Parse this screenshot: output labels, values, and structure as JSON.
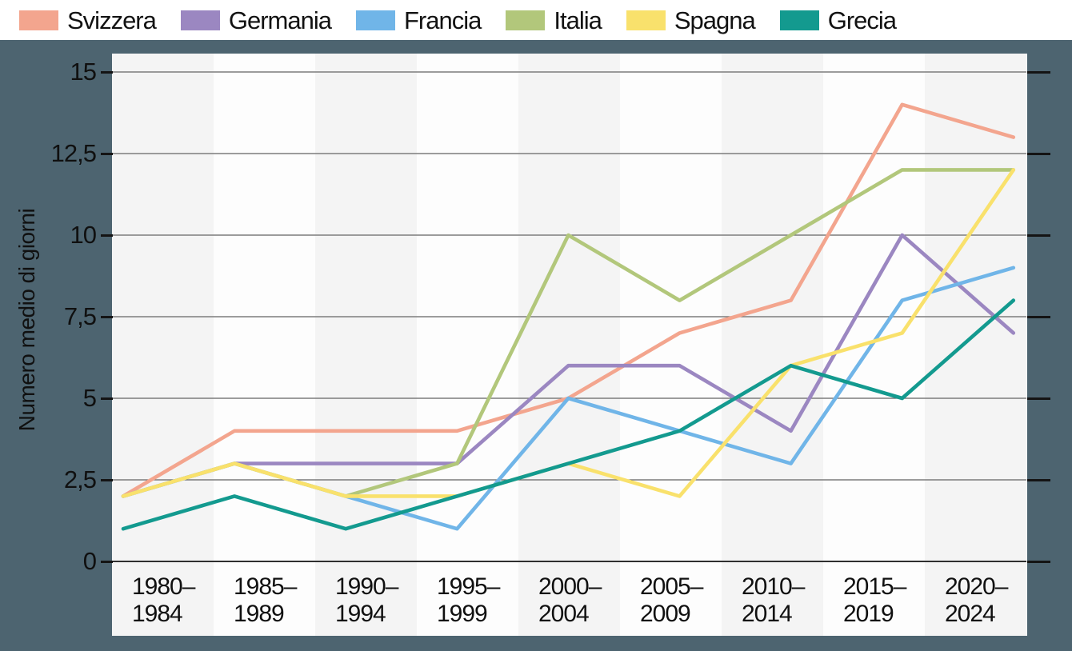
{
  "legend": {
    "items": [
      {
        "label": "Svizzera",
        "color": "#f3a58e"
      },
      {
        "label": "Germania",
        "color": "#9b87c1"
      },
      {
        "label": "Francia",
        "color": "#70b5e8"
      },
      {
        "label": "Italia",
        "color": "#b2c77b"
      },
      {
        "label": "Spagna",
        "color": "#f9e16c"
      },
      {
        "label": "Grecia",
        "color": "#139a8f"
      }
    ]
  },
  "chart_data": {
    "type": "line",
    "title": "",
    "ylabel": "Numero medio di giorni",
    "xlabel": "",
    "categories": [
      "1980–1984",
      "1985–1989",
      "1990–1994",
      "1995–1999",
      "2000–2004",
      "2005–2009",
      "2010–2014",
      "2015–2019",
      "2020–2024"
    ],
    "series": [
      {
        "name": "Svizzera",
        "color": "#f3a58e",
        "values": [
          2,
          4,
          4,
          4,
          5,
          7,
          8,
          14,
          13
        ]
      },
      {
        "name": "Germania",
        "color": "#9b87c1",
        "values": [
          2,
          3,
          3,
          3,
          6,
          6,
          4,
          10,
          7
        ]
      },
      {
        "name": "Francia",
        "color": "#70b5e8",
        "values": [
          2,
          3,
          2,
          1,
          5,
          4,
          3,
          8,
          9
        ]
      },
      {
        "name": "Italia",
        "color": "#b2c77b",
        "values": [
          2,
          3,
          2,
          3,
          10,
          8,
          10,
          12,
          12
        ]
      },
      {
        "name": "Spagna",
        "color": "#f9e16c",
        "values": [
          2,
          3,
          2,
          2,
          3,
          2,
          6,
          7,
          12
        ]
      },
      {
        "name": "Grecia",
        "color": "#139a8f",
        "values": [
          1,
          2,
          1,
          2,
          3,
          4,
          6,
          5,
          8
        ]
      }
    ],
    "y_ticks": [
      0,
      2.5,
      5,
      7.5,
      10,
      12.5,
      15
    ],
    "y_tick_labels": [
      "0",
      "2,5",
      "5",
      "7,5",
      "10",
      "12,5",
      "15"
    ],
    "ylim": [
      0,
      15
    ],
    "grid": "horizontal",
    "legend_position": "top-left",
    "background_bands": "alternating"
  }
}
